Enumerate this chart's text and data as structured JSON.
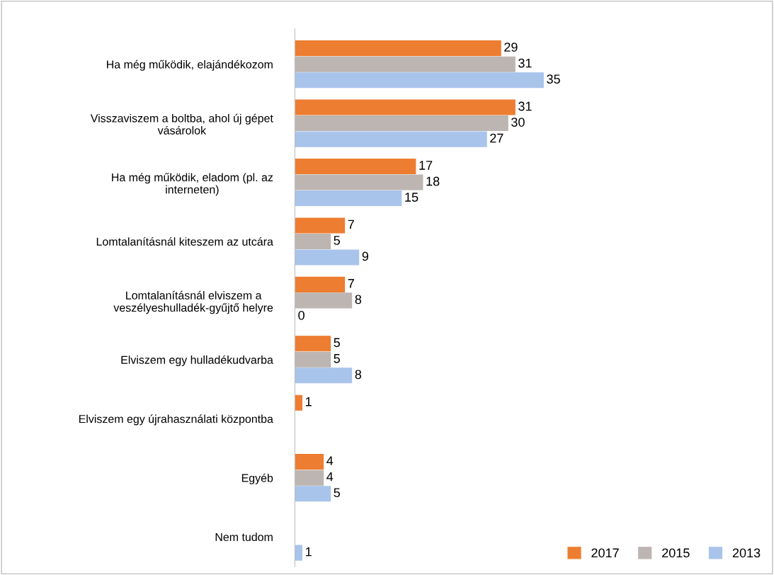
{
  "chart_data": {
    "type": "bar",
    "orientation": "horizontal",
    "data_labels": true,
    "legend": "bottom right",
    "grid": false,
    "categories": [
      "Ha még működik, elajándékozom",
      "Visszaviszem a boltba, ahol új gépet\nvásárolok",
      "Ha még működik, eladom (pl. az\ninterneten)",
      "Lomtalanításnál kiteszem az utcára",
      "Lomtalanításnál elviszem a\nveszélyeshulladék-gyűjtő helyre",
      "Elviszem egy hulladékudvarba",
      "Elviszem egy újrahasználati központba",
      "Egyéb",
      "Nem tudom"
    ],
    "series": [
      {
        "name": "2017",
        "color": "#ed7d31",
        "values": [
          29,
          31,
          17,
          7,
          7,
          5,
          1,
          4,
          null
        ]
      },
      {
        "name": "2015",
        "color": "#bcb5b1",
        "values": [
          31,
          30,
          18,
          5,
          8,
          5,
          null,
          4,
          null
        ]
      },
      {
        "name": "2013",
        "color": "#a9c4eb",
        "values": [
          35,
          27,
          15,
          9,
          0,
          8,
          null,
          5,
          1
        ]
      }
    ]
  }
}
